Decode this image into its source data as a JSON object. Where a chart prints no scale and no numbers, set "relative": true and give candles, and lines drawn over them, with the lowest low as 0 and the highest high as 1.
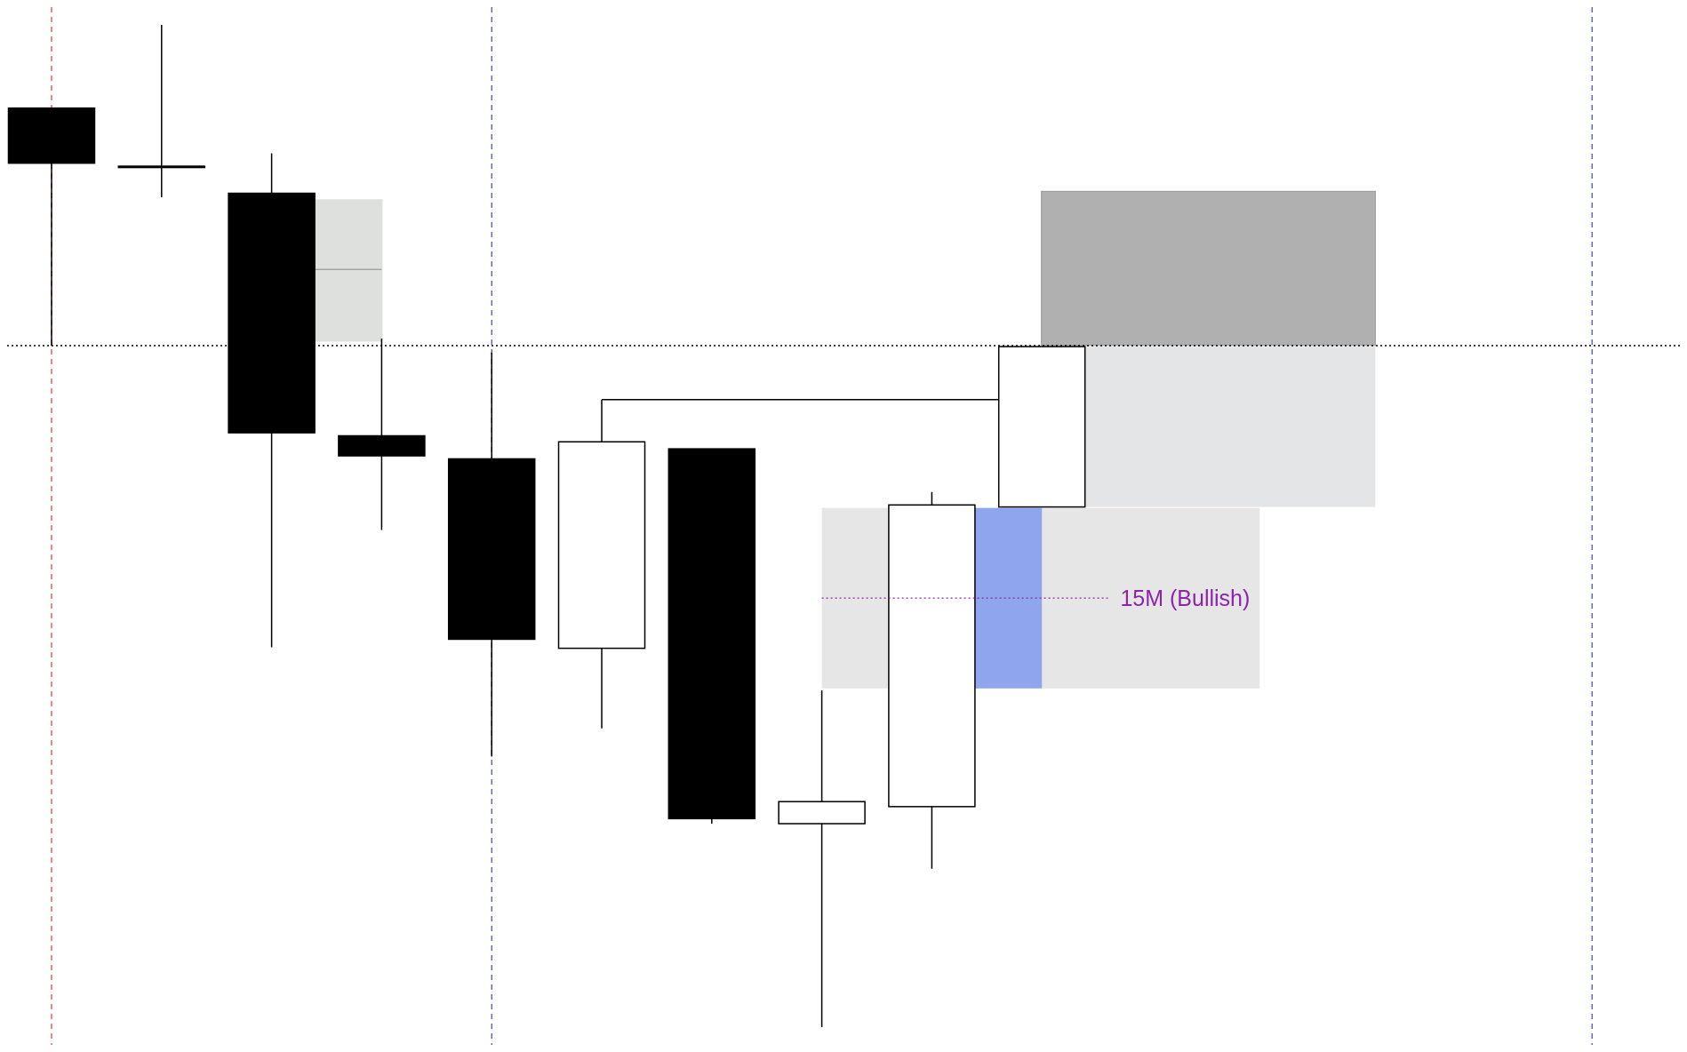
{
  "chart_data": {
    "type": "candlestick",
    "relative": true,
    "categories": [
      null,
      null,
      null,
      null,
      null,
      null,
      null,
      null,
      null,
      null
    ],
    "ohlc": [
      [
        0.917,
        0.917,
        0.68,
        0.862
      ],
      [
        0.859,
        1,
        0.828,
        0.859
      ],
      [
        0.832,
        0.872,
        0.379,
        0.593
      ],
      [
        0.59,
        0.687,
        0.496,
        0.57
      ],
      [
        0.567,
        0.673,
        0.27,
        0.387
      ],
      [
        0.378,
        0.626,
        0.298,
        0.584
      ],
      [
        0.577,
        0.577,
        0.203,
        0.208
      ],
      [
        0.203,
        0.336,
        0,
        0.225
      ],
      [
        0.22,
        0.534,
        0.158,
        0.521
      ],
      [
        0.519,
        0.679,
        0.519,
        0.679
      ]
    ],
    "ref_lines": [
      {
        "axis": "y",
        "value": 0.68,
        "color": "#000000",
        "line_style": "dotted"
      }
    ],
    "annotations": [
      "15M (Bullish)"
    ]
  }
}
